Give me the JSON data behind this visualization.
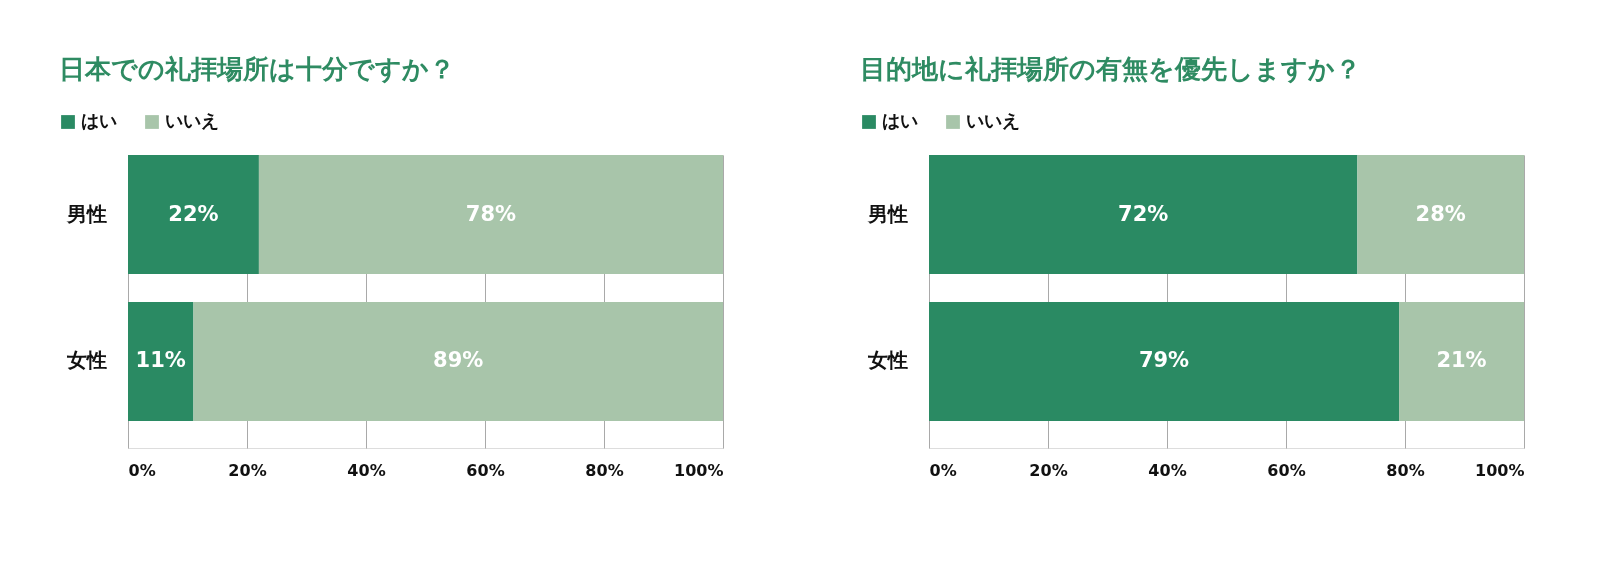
{
  "chart_data": [
    {
      "type": "bar",
      "orientation": "horizontal",
      "stacked": true,
      "title": "日本での礼拝場所は十分ですか？",
      "categories": [
        "男性",
        "女性"
      ],
      "series": [
        {
          "name": "はい",
          "color": "#2a8a63",
          "values": [
            22,
            11
          ],
          "value_labels": [
            "22%",
            "11%"
          ]
        },
        {
          "name": "いいえ",
          "color": "#a8c5aa",
          "values": [
            78,
            89
          ],
          "value_labels": [
            "78%",
            "89%"
          ]
        }
      ],
      "xlim": [
        0,
        100
      ],
      "xticks": [
        {
          "value": 0,
          "label": "0%"
        },
        {
          "value": 20,
          "label": "20%"
        },
        {
          "value": 40,
          "label": "40%"
        },
        {
          "value": 60,
          "label": "60%"
        },
        {
          "value": 80,
          "label": "80%"
        },
        {
          "value": 100,
          "label": "100%"
        }
      ],
      "grid": "x",
      "legend": "top left"
    },
    {
      "type": "bar",
      "orientation": "horizontal",
      "stacked": true,
      "title": "目的地に礼拝場所の有無を優先しますか？",
      "categories": [
        "男性",
        "女性"
      ],
      "series": [
        {
          "name": "はい",
          "color": "#2a8a63",
          "values": [
            72,
            79
          ],
          "value_labels": [
            "72%",
            "79%"
          ]
        },
        {
          "name": "いいえ",
          "color": "#a8c5aa",
          "values": [
            28,
            21
          ],
          "value_labels": [
            "28%",
            "21%"
          ]
        }
      ],
      "xlim": [
        0,
        100
      ],
      "xticks": [
        {
          "value": 0,
          "label": "0%"
        },
        {
          "value": 20,
          "label": "20%"
        },
        {
          "value": 40,
          "label": "40%"
        },
        {
          "value": 60,
          "label": "60%"
        },
        {
          "value": 80,
          "label": "80%"
        },
        {
          "value": 100,
          "label": "100%"
        }
      ],
      "grid": "x",
      "legend": "top left"
    }
  ]
}
